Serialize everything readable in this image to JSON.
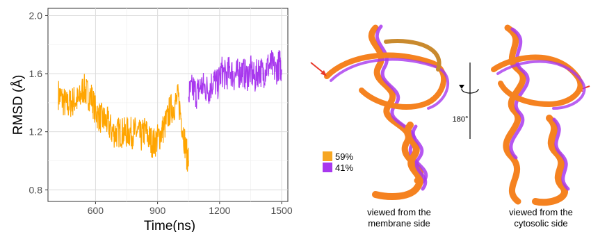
{
  "chart_data": {
    "type": "line",
    "xlabel": "Time(ns)",
    "ylabel": "RMSD (Å)",
    "xlim": [
      370,
      1530
    ],
    "ylim": [
      0.72,
      2.05
    ],
    "xticks": [
      600,
      900,
      1200,
      1500
    ],
    "yticks": [
      0.8,
      1.2,
      1.6,
      2.0
    ],
    "xtick_labels": [
      "600",
      "900",
      "1200",
      "1500"
    ],
    "ytick_labels": [
      "0.8",
      "1.2",
      "1.6",
      "2.0"
    ],
    "grid": true,
    "series": [
      {
        "color": "#FFA500",
        "x": [
          420,
          440,
          460,
          480,
          500,
          520,
          540,
          560,
          580,
          600,
          620,
          640,
          660,
          680,
          700,
          720,
          740,
          760,
          780,
          800,
          820,
          840,
          860,
          880,
          900,
          920,
          940,
          960,
          980,
          1000,
          1020,
          1040,
          1050
        ],
        "y": [
          1.46,
          1.42,
          1.38,
          1.4,
          1.42,
          1.41,
          1.5,
          1.46,
          1.44,
          1.34,
          1.3,
          1.28,
          1.26,
          1.2,
          1.19,
          1.2,
          1.19,
          1.2,
          1.19,
          1.2,
          1.16,
          1.21,
          1.15,
          1.12,
          1.15,
          1.2,
          1.26,
          1.35,
          1.38,
          1.43,
          1.24,
          1.05,
          1.0
        ]
      },
      {
        "color": "#A838EE",
        "x": [
          1050,
          1070,
          1090,
          1110,
          1130,
          1150,
          1170,
          1190,
          1210,
          1230,
          1250,
          1270,
          1290,
          1310,
          1330,
          1350,
          1370,
          1390,
          1410,
          1430,
          1450,
          1470,
          1490,
          1500
        ],
        "y": [
          1.45,
          1.5,
          1.46,
          1.52,
          1.5,
          1.49,
          1.56,
          1.52,
          1.62,
          1.58,
          1.63,
          1.58,
          1.6,
          1.62,
          1.58,
          1.62,
          1.56,
          1.63,
          1.6,
          1.65,
          1.66,
          1.62,
          1.67,
          1.63
        ]
      }
    ]
  },
  "structure_panel": {
    "legend": [
      {
        "label": "59%",
        "color": "#F6A623"
      },
      {
        "label": "41%",
        "color": "#A838EE"
      }
    ],
    "rotation_label": "180°",
    "caption_left": [
      "viewed from the",
      "membrane side"
    ],
    "caption_right": [
      "viewed from the",
      "cytosolic side"
    ]
  }
}
